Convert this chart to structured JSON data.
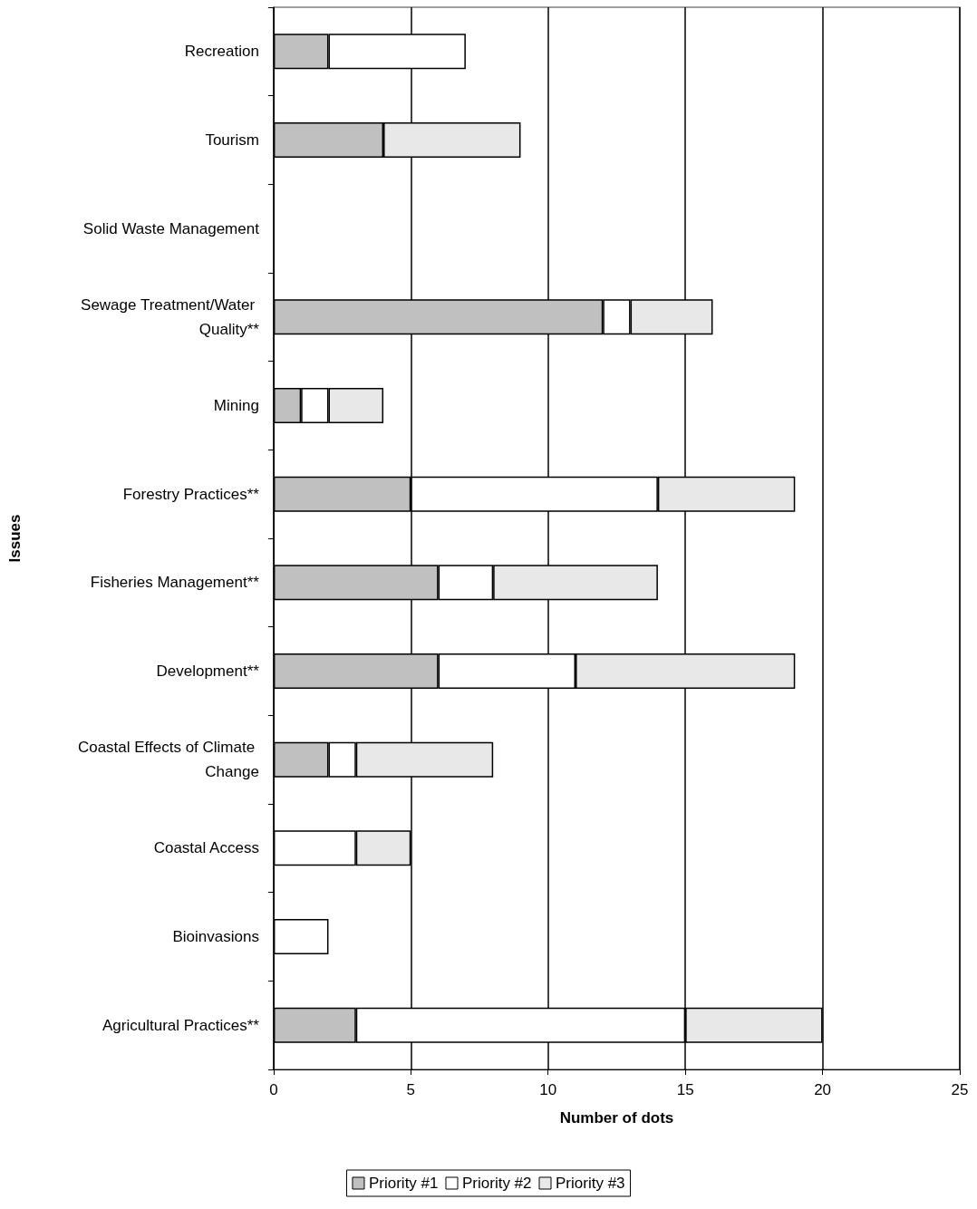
{
  "chart_data": {
    "type": "bar",
    "orientation": "horizontal",
    "stacked": true,
    "xlabel": "Number of dots",
    "ylabel": "Issues",
    "categories": [
      "Recreation",
      "Tourism",
      "Solid Waste Management",
      "Sewage Treatment/Water Quality**",
      "Mining",
      "Forestry Practices**",
      "Fisheries Management**",
      "Development**",
      "Coastal Effects of Climate Change",
      "Coastal Access",
      "Bioinvasions",
      "Agricultural Practices**"
    ],
    "series": [
      {
        "name": "Priority #1",
        "color": "#c0c0c0",
        "values": [
          2,
          4,
          0,
          12,
          1,
          5,
          6,
          6,
          2,
          0,
          0,
          3
        ]
      },
      {
        "name": "Priority #2",
        "color": "#ffffff",
        "values": [
          5,
          0,
          0,
          1,
          1,
          9,
          2,
          5,
          1,
          3,
          2,
          12
        ]
      },
      {
        "name": "Priority #3",
        "color": "#e8e8e8",
        "values": [
          0,
          5,
          0,
          3,
          2,
          5,
          6,
          8,
          5,
          2,
          0,
          5
        ]
      }
    ],
    "xlim": [
      0,
      25
    ],
    "xticks": [
      0,
      5,
      10,
      15,
      20,
      25
    ],
    "grid": "x",
    "legend": "bottom"
  }
}
